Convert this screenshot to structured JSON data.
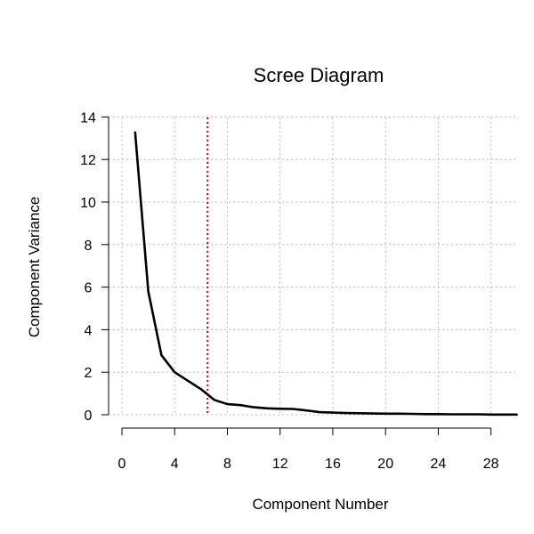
{
  "chart_data": {
    "type": "line",
    "title": "Scree Diagram",
    "xlabel": "Component Number",
    "ylabel": "Component Variance",
    "xlim": [
      0,
      30
    ],
    "ylim": [
      0,
      14
    ],
    "x_ticks": [
      0,
      4,
      8,
      12,
      16,
      20,
      24,
      28
    ],
    "y_ticks": [
      0,
      2,
      4,
      6,
      8,
      10,
      12,
      14
    ],
    "grid": true,
    "series": [
      {
        "color": "#000000",
        "x": [
          1,
          2,
          3,
          4,
          5,
          6,
          7,
          8,
          9,
          10,
          11,
          12,
          13,
          14,
          15,
          16,
          17,
          18,
          19,
          20,
          21,
          22,
          23,
          24,
          25,
          26,
          27,
          28,
          29,
          30
        ],
        "values": [
          13.3,
          5.8,
          2.8,
          2.0,
          1.6,
          1.2,
          0.7,
          0.5,
          0.45,
          0.35,
          0.3,
          0.28,
          0.27,
          0.2,
          0.12,
          0.1,
          0.08,
          0.07,
          0.06,
          0.05,
          0.05,
          0.04,
          0.03,
          0.03,
          0.02,
          0.02,
          0.02,
          0.01,
          0.01,
          0.01
        ]
      }
    ],
    "reference_line": {
      "orientation": "vertical",
      "x": 6.5,
      "color": "#cc0000",
      "style": "dotted"
    }
  }
}
